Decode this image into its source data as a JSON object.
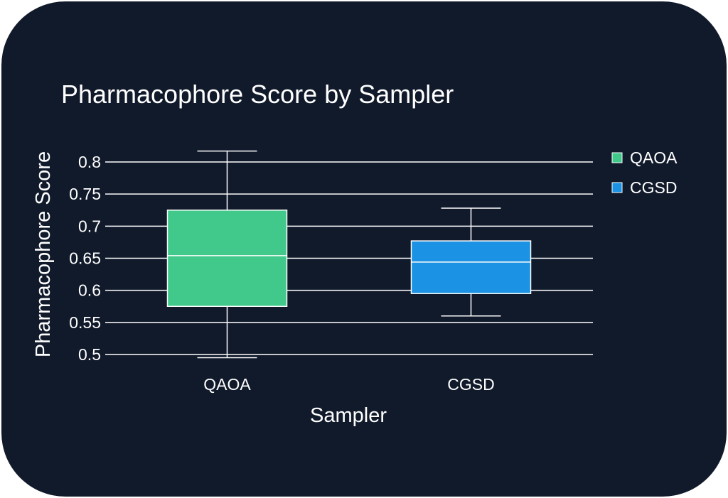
{
  "chart_data": {
    "type": "box",
    "title": "Pharmacophore Score by Sampler",
    "xlabel": "Sampler",
    "ylabel": "Pharmacophore Score",
    "ylim": [
      0.5,
      0.8
    ],
    "yticks": [
      "0.5",
      "0.55",
      "0.6",
      "0.65",
      "0.7",
      "0.75",
      "0.8"
    ],
    "grid": true,
    "legend_position": "top-right",
    "categories": [
      "QAOA",
      "CGSD"
    ],
    "series": [
      {
        "name": "QAOA",
        "color": "#40c98a",
        "min": 0.495,
        "q1": 0.575,
        "median": 0.654,
        "q3": 0.725,
        "max": 0.817
      },
      {
        "name": "CGSD",
        "color": "#1b92e3",
        "min": 0.56,
        "q1": 0.595,
        "median": 0.644,
        "q3": 0.677,
        "max": 0.728
      }
    ]
  }
}
